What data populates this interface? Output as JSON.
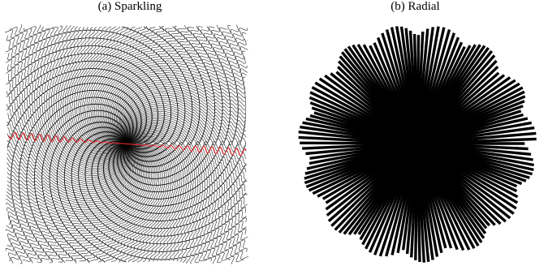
{
  "figure": {
    "panels": [
      {
        "id": "a",
        "caption": "(a) Sparkling",
        "style": "wavy radial lines in a square",
        "line_color": "#000000",
        "highlight_color": "#e8292e"
      },
      {
        "id": "b",
        "caption": "(b) Radial",
        "style": "straight radial strokes in a circle",
        "line_color": "#000000"
      }
    ]
  }
}
